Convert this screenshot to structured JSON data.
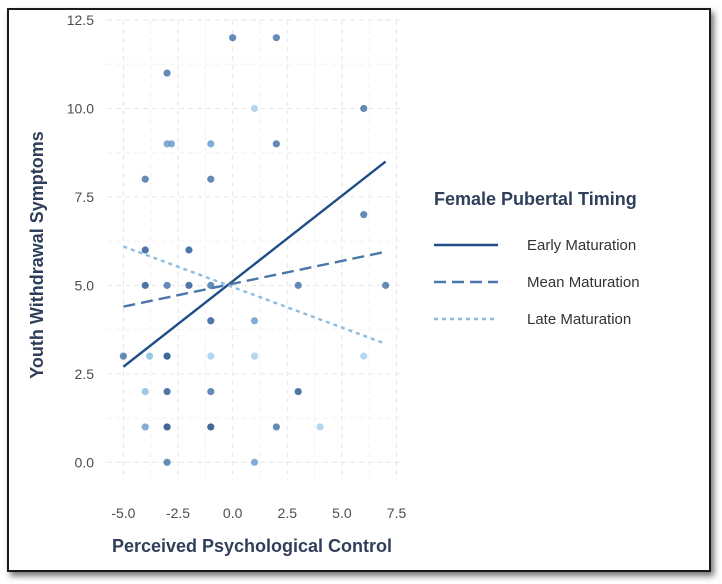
{
  "chart_data": {
    "type": "scatter",
    "xlabel": "Perceived Psychological Control",
    "ylabel": "Youth Withdrawal Symptoms",
    "xlim": [
      -5.75,
      7.75
    ],
    "ylim": [
      -0.5,
      12.5
    ],
    "x_ticks": [
      "-5.0",
      "-2.5",
      "0.0",
      "2.5",
      "5.0",
      "7.5"
    ],
    "y_ticks": [
      "0.0",
      "2.5",
      "5.0",
      "7.5",
      "10.0",
      "12.5"
    ],
    "grid": true,
    "legend": {
      "title": "Female Pubertal Timing",
      "placement": "right"
    },
    "series": [
      {
        "name": "Early Maturation",
        "style": "solid",
        "color": "#1f4e86",
        "x": [
          -5,
          7
        ],
        "y": [
          2.7,
          8.5
        ]
      },
      {
        "name": "Mean Maturation",
        "style": "dashed",
        "color": "#4a77aa",
        "x": [
          -5,
          7
        ],
        "y": [
          4.4,
          5.95
        ]
      },
      {
        "name": "Late Maturation",
        "style": "dotted",
        "color": "#8bbde0",
        "x": [
          -5,
          7
        ],
        "y": [
          6.1,
          3.35
        ]
      }
    ],
    "points": [
      {
        "x": 0,
        "y": 12,
        "c": "#4a77aa"
      },
      {
        "x": 2,
        "y": 12,
        "c": "#4a77aa"
      },
      {
        "x": -3,
        "y": 11,
        "c": "#4a77aa"
      },
      {
        "x": 1,
        "y": 10,
        "c": "#a8d0ec"
      },
      {
        "x": 6,
        "y": 10,
        "c": "#4a77aa"
      },
      {
        "x": -3,
        "y": 9,
        "c": "#6d9fcc"
      },
      {
        "x": -2.8,
        "y": 9,
        "c": "#6d9fcc"
      },
      {
        "x": -1,
        "y": 9,
        "c": "#6d9fcc"
      },
      {
        "x": 2,
        "y": 9,
        "c": "#4a77aa"
      },
      {
        "x": -4,
        "y": 8,
        "c": "#4a77aa"
      },
      {
        "x": -1,
        "y": 8,
        "c": "#4a77aa"
      },
      {
        "x": 6,
        "y": 7,
        "c": "#4a77aa"
      },
      {
        "x": -4,
        "y": 6,
        "c": "#2f5f96"
      },
      {
        "x": -2,
        "y": 6,
        "c": "#2f5f96"
      },
      {
        "x": -4,
        "y": 5,
        "c": "#2f5f96"
      },
      {
        "x": -3,
        "y": 5,
        "c": "#4a77aa"
      },
      {
        "x": -2,
        "y": 5,
        "c": "#2f5f96"
      },
      {
        "x": -1,
        "y": 5,
        "c": "#4a77aa"
      },
      {
        "x": 3,
        "y": 5,
        "c": "#4a77aa"
      },
      {
        "x": 7,
        "y": 5,
        "c": "#4a77aa"
      },
      {
        "x": -1,
        "y": 4,
        "c": "#2f5f96"
      },
      {
        "x": 1,
        "y": 4,
        "c": "#6d9fcc"
      },
      {
        "x": -5,
        "y": 3,
        "c": "#4a77aa"
      },
      {
        "x": -3,
        "y": 3,
        "c": "#1f4e86"
      },
      {
        "x": -1,
        "y": 3,
        "c": "#a8d0ec"
      },
      {
        "x": 1,
        "y": 3,
        "c": "#a8d0ec"
      },
      {
        "x": 6,
        "y": 3,
        "c": "#a8d0ec"
      },
      {
        "x": -3.8,
        "y": 3,
        "c": "#8bbde0"
      },
      {
        "x": -4,
        "y": 2,
        "c": "#8bbde0"
      },
      {
        "x": -3,
        "y": 2,
        "c": "#2f5f96"
      },
      {
        "x": -1,
        "y": 2,
        "c": "#4a77aa"
      },
      {
        "x": 3,
        "y": 2,
        "c": "#2f5f96"
      },
      {
        "x": -4,
        "y": 1,
        "c": "#6d9fcc"
      },
      {
        "x": -3,
        "y": 1,
        "c": "#1f4e86"
      },
      {
        "x": -1,
        "y": 1,
        "c": "#1f4e86"
      },
      {
        "x": 2,
        "y": 1,
        "c": "#4a77aa"
      },
      {
        "x": 4,
        "y": 1,
        "c": "#a8d0ec"
      },
      {
        "x": -3,
        "y": 0,
        "c": "#4a77aa"
      },
      {
        "x": 1,
        "y": 0,
        "c": "#6d9fcc"
      }
    ]
  }
}
